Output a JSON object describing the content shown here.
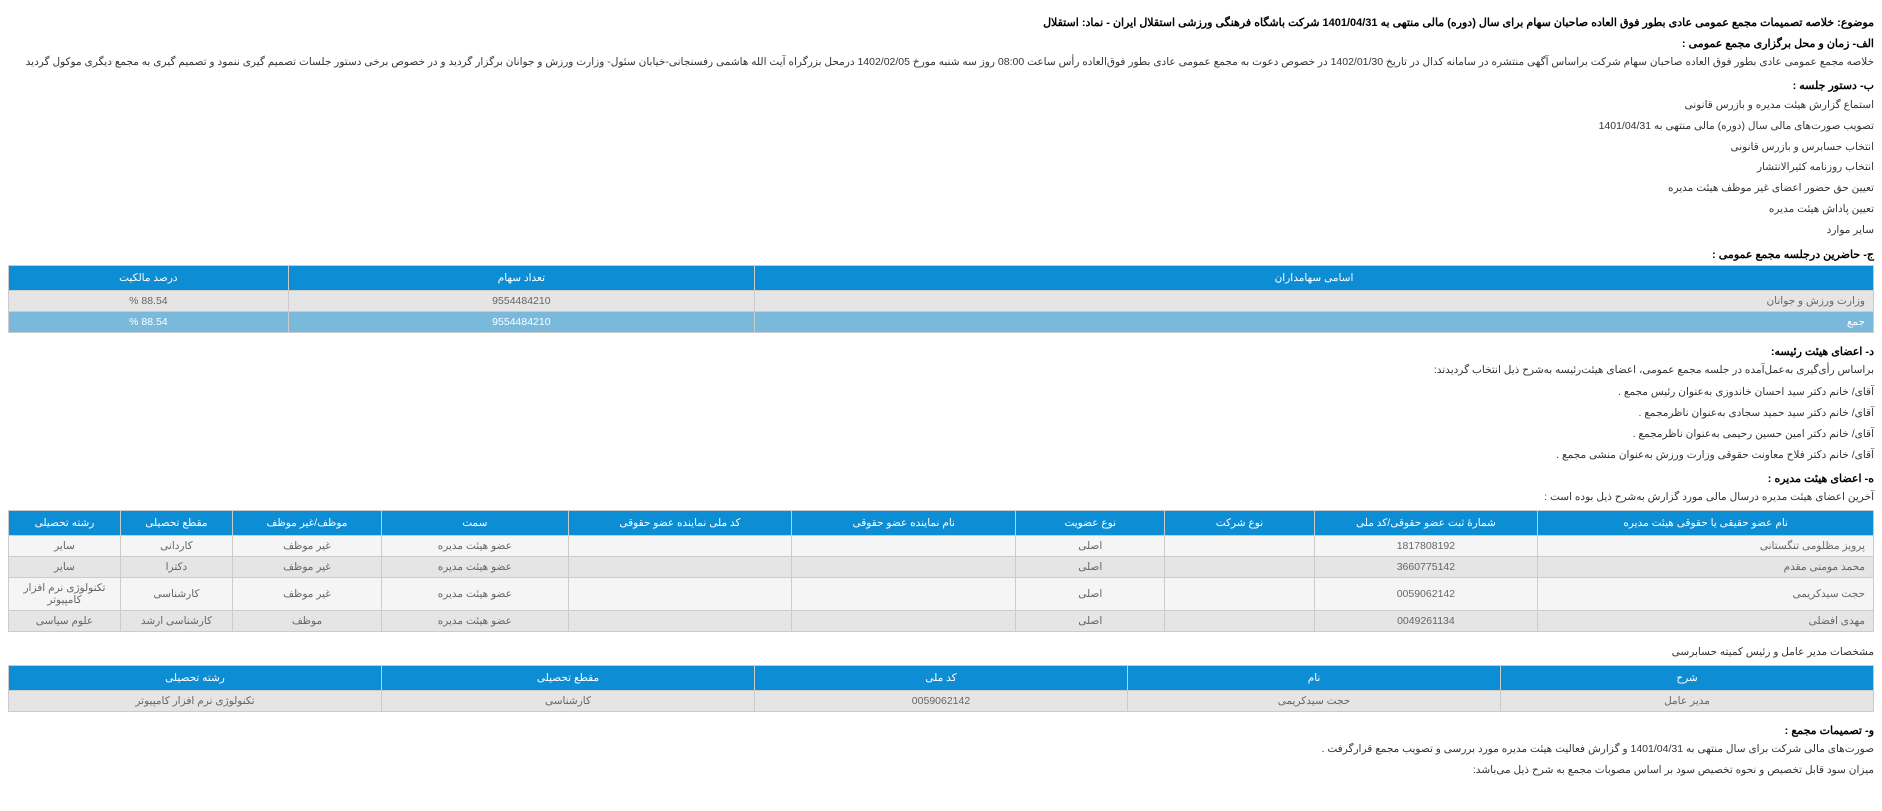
{
  "subject": {
    "label": "موضوع:",
    "text": "خلاصه تصمیمات مجمع عمومی عادی بطور فوق العاده صاحبان سهام برای سال (دوره) مالی منتهی به 1401/04/31 شرکت باشگاه فرهنگی ورزشی استقلال ایران - نماد: استقلال"
  },
  "section_a": {
    "title": "الف- زمان و محل برگزاری مجمع عمومی :",
    "text": "خلاصه مجمع عمومی عادی بطور فوق العاده صاحبان سهام شرکت براساس آگهی منتشره در سامانه کدال در تاریخ 1402/01/30 در خصوص دعوت به مجمع عمومی عادی بطور فوق‌العاده رأس ساعت 08:00 روز سه شنبه مورخ 1402/02/05 درمحل  بزرگراه آیت الله هاشمی رفسنجانی-خیابان سئول- وزارت ورزش و جوانان   برگزار گردید و در خصوص برخی دستور جلسات تصمیم گیری ننمود و تصمیم گیری به مجمع دیگری موکول گردید"
  },
  "section_b": {
    "title": "ب- دستور جلسه :",
    "items": [
      "استماع گزارش هیئت مدیره و بازرس قانونی",
      "تصویب صورت‌های مالی سال (دوره) مالی منتهی به 1401/04/31",
      "انتخاب حسابرس و بازرس قانونی",
      "انتخاب روزنامه کثیرالانتشار",
      "تعیین حق حضور اعضای غیر موظف هیئت مدیره",
      "تعیین پاداش هیئت مدیره",
      "سایر موارد"
    ]
  },
  "section_c": {
    "title": "ج- حاضرین درجلسه مجمع عمومی :",
    "headers": {
      "name": "اسامی سهامداران",
      "shares": "تعداد سهام",
      "percent": "درصد مالکیت"
    },
    "rows": [
      {
        "name": "وزارت ورزش و جوانان",
        "shares": "9554484210",
        "percent": "88.54 %"
      }
    ],
    "total": {
      "name": "جمع",
      "shares": "9554484210",
      "percent": "88.54 %"
    }
  },
  "section_d": {
    "title": "د- اعضای هیئت رئیسه:",
    "intro": "براساس رأی‌گیری به‌عمل‌آمده در جلسه مجمع عمومی، اعضای هیئت‌رئیسه به‌شرح ذیل انتخاب گردیدند:",
    "items": [
      "آقای/ خانم  دکتر سید احسان خاندوزی  به‌عنوان رئیس مجمع .",
      "آقای/ خانم  دکتر سید حمید سجادی  به‌عنوان ناظرمجمع .",
      "آقای/ خانم  دکتر امین حسین رحیمی  به‌عنوان ناظرمجمع .",
      "آقای/ خانم  دکتر فلاح معاونت حقوقی وزارت ورزش  به‌عنوان منشی مجمع ."
    ]
  },
  "section_e": {
    "title": "ه- اعضای هیئت مدیره :",
    "intro": "آخرین اعضای هیئت مدیره درسال مالی مورد گزارش به‌شرح ذیل بوده است :",
    "headers": {
      "name": "نام عضو حقیقی یا حقوقی هیئت مدیره",
      "id": "شمارۀ ثبت عضو حقوقی/کد ملی",
      "company_type": "نوع شرکت",
      "member_type": "نوع عضویت",
      "rep_name": "نام نماینده عضو حقوقی",
      "rep_id": "کد ملی نماینده عضو حقوقی",
      "position": "سمت",
      "obligated": "موظف/غیر موظف",
      "degree": "مقطع تحصیلی",
      "field": "رشته تحصیلی"
    },
    "rows": [
      {
        "name": "پرویز مظلومی تنگستانی",
        "id": "1817808192",
        "company_type": "",
        "member_type": "اصلی",
        "rep_name": "",
        "rep_id": "",
        "position": "عضو هیئت مدیره",
        "obligated": "غیر موظف",
        "degree": "کاردانی",
        "field": "سایر"
      },
      {
        "name": "محمد مومنی مقدم",
        "id": "3660775142",
        "company_type": "",
        "member_type": "اصلی",
        "rep_name": "",
        "rep_id": "",
        "position": "عضو هیئت مدیره",
        "obligated": "غیر موظف",
        "degree": "دکترا",
        "field": "سایر"
      },
      {
        "name": "حجت سیدکریمی",
        "id": "0059062142",
        "company_type": "",
        "member_type": "اصلی",
        "rep_name": "",
        "rep_id": "",
        "position": "عضو هیئت مدیره",
        "obligated": "غیر موظف",
        "degree": "کارشناسی",
        "field": "تکنولوژی نرم افزار کامپیوتر"
      },
      {
        "name": "مهدی افضلی",
        "id": "0049261134",
        "company_type": "",
        "member_type": "اصلی",
        "rep_name": "",
        "rep_id": "",
        "position": "عضو هیئت مدیره",
        "obligated": "موظف",
        "degree": "کارشناسی ارشد",
        "field": "علوم سیاسی"
      }
    ]
  },
  "section_ceo": {
    "title": "مشخصات مدیر عامل و رئیس کمیته حسابرسی",
    "headers": {
      "desc": "شرح",
      "name": "نام",
      "id": "کد ملی",
      "degree": "مقطع تحصیلی",
      "field": "رشته تحصیلی"
    },
    "rows": [
      {
        "desc": "مدیر عامل",
        "name": "حجت سیدکریمی",
        "id": "0059062142",
        "degree": "کارشناسی",
        "field": "تکنولوژی نرم افزار کامپیوتر"
      }
    ]
  },
  "section_f": {
    "title": "و- تصمیمات مجمع :",
    "line1": "صورت‌های مالی شرکت برای سال منتهی به  1401/04/31 و گزارش فعالیت هیئت مدیره مورد بررسی و تصویب مجمع قرارگرفت .",
    "line2": "میزان سود قابل تخصیص و نحوه تخصیص سود بر اساس مصوبات مجمع به شرح ذیل می‌باشد:"
  }
}
